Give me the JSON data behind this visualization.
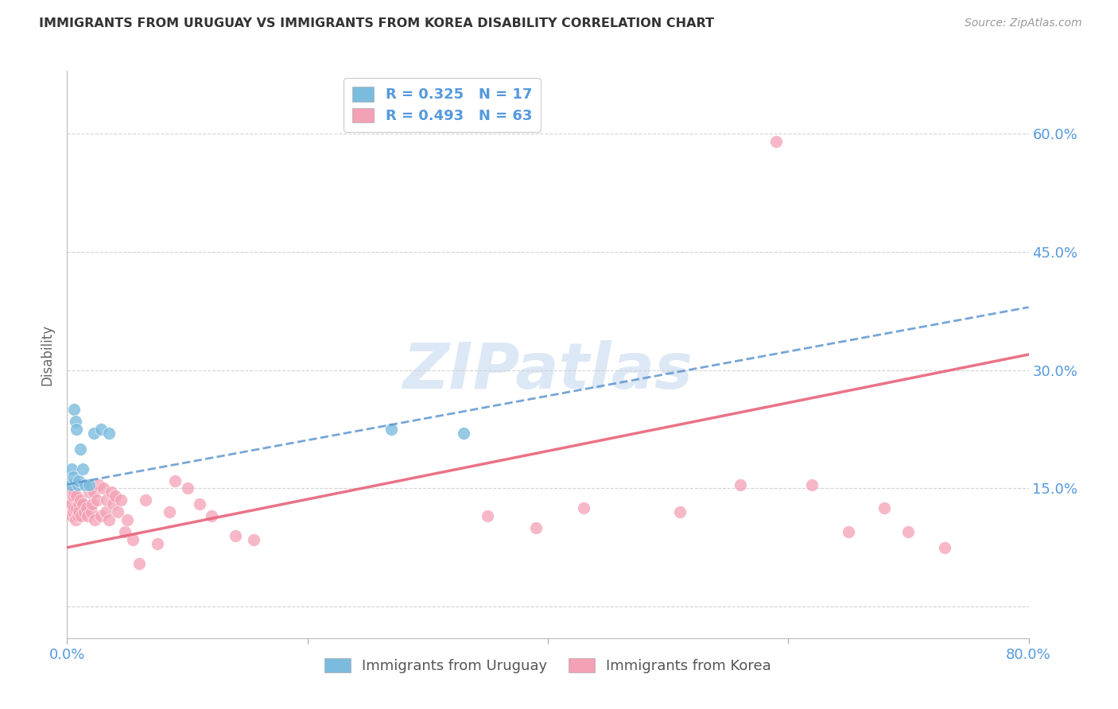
{
  "title": "IMMIGRANTS FROM URUGUAY VS IMMIGRANTS FROM KOREA DISABILITY CORRELATION CHART",
  "source": "Source: ZipAtlas.com",
  "xlabel": "",
  "ylabel": "Disability",
  "xlim": [
    0.0,
    0.8
  ],
  "ylim": [
    -0.04,
    0.68
  ],
  "yticks": [
    0.0,
    0.15,
    0.3,
    0.45,
    0.6
  ],
  "ytick_labels": [
    "",
    "15.0%",
    "30.0%",
    "45.0%",
    "60.0%"
  ],
  "xticks": [
    0.0,
    0.2,
    0.4,
    0.6,
    0.8
  ],
  "xtick_labels": [
    "0.0%",
    "",
    "",
    "",
    "80.0%"
  ],
  "uruguay_R": "0.325",
  "uruguay_N": "17",
  "korea_R": "0.493",
  "korea_N": "63",
  "uruguay_color": "#7bbcde",
  "korea_color": "#f4a0b5",
  "uruguay_line_color": "#5590cc",
  "korea_line_color": "#e8637a",
  "background_color": "#ffffff",
  "grid_color": "#d0d0d0",
  "watermark_text": "ZIPatlas",
  "watermark_color": "#dce8f5",
  "uruguay_points_x": [
    0.003,
    0.004,
    0.005,
    0.006,
    0.007,
    0.008,
    0.009,
    0.01,
    0.011,
    0.013,
    0.015,
    0.018,
    0.022,
    0.028,
    0.035,
    0.27,
    0.33
  ],
  "uruguay_points_y": [
    0.155,
    0.175,
    0.165,
    0.25,
    0.235,
    0.225,
    0.155,
    0.16,
    0.2,
    0.175,
    0.155,
    0.155,
    0.22,
    0.225,
    0.22,
    0.225,
    0.22
  ],
  "korea_points_x": [
    0.002,
    0.003,
    0.003,
    0.004,
    0.004,
    0.005,
    0.005,
    0.006,
    0.006,
    0.007,
    0.008,
    0.008,
    0.009,
    0.01,
    0.01,
    0.011,
    0.012,
    0.013,
    0.014,
    0.015,
    0.016,
    0.017,
    0.018,
    0.02,
    0.021,
    0.022,
    0.023,
    0.025,
    0.026,
    0.028,
    0.03,
    0.032,
    0.033,
    0.035,
    0.037,
    0.038,
    0.04,
    0.042,
    0.045,
    0.048,
    0.05,
    0.055,
    0.06,
    0.065,
    0.075,
    0.085,
    0.09,
    0.1,
    0.11,
    0.12,
    0.14,
    0.155,
    0.35,
    0.39,
    0.43,
    0.51,
    0.56,
    0.59,
    0.62,
    0.65,
    0.68,
    0.7,
    0.73
  ],
  "korea_points_y": [
    0.125,
    0.13,
    0.145,
    0.115,
    0.13,
    0.12,
    0.14,
    0.125,
    0.145,
    0.11,
    0.125,
    0.14,
    0.115,
    0.13,
    0.12,
    0.135,
    0.115,
    0.13,
    0.12,
    0.155,
    0.125,
    0.115,
    0.145,
    0.12,
    0.13,
    0.145,
    0.11,
    0.135,
    0.155,
    0.115,
    0.15,
    0.12,
    0.135,
    0.11,
    0.145,
    0.13,
    0.14,
    0.12,
    0.135,
    0.095,
    0.11,
    0.085,
    0.055,
    0.135,
    0.08,
    0.12,
    0.16,
    0.15,
    0.13,
    0.115,
    0.09,
    0.085,
    0.115,
    0.1,
    0.125,
    0.12,
    0.155,
    0.59,
    0.155,
    0.095,
    0.125,
    0.095,
    0.075
  ],
  "uruguay_trendline_x": [
    0.0,
    0.8
  ],
  "uruguay_trendline_y": [
    0.155,
    0.38
  ],
  "korea_trendline_x": [
    0.0,
    0.8
  ],
  "korea_trendline_y": [
    0.075,
    0.32
  ]
}
